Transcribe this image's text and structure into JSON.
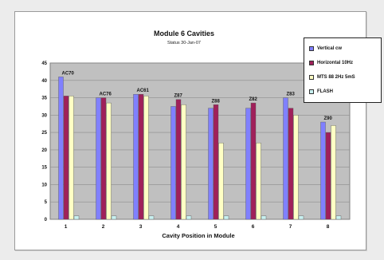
{
  "chart_data": {
    "type": "bar",
    "title": "Module 6 Cavities",
    "subtitle": "Status 30-Jan-07",
    "xlabel": "Cavity Position in Module",
    "ylabel": "",
    "ylim": [
      0,
      45
    ],
    "yticks": [
      0,
      5,
      10,
      15,
      20,
      25,
      30,
      35,
      40,
      45
    ],
    "categories": [
      "1",
      "2",
      "3",
      "4",
      "5",
      "6",
      "7",
      "8"
    ],
    "cavity_labels": [
      "AC70",
      "AC76",
      "AC61",
      "Z87",
      "Z88",
      "Z82",
      "Z83",
      "Z90"
    ],
    "grid": true,
    "legend": "top-right",
    "series": [
      {
        "name": "Vertical cw",
        "color": "#8080ff",
        "values": [
          41,
          35,
          36,
          32.5,
          32,
          32,
          35,
          28
        ]
      },
      {
        "name": "Horizontal 10Hz",
        "color": "#a0205a",
        "values": [
          35.5,
          35,
          36,
          34.5,
          33,
          33.5,
          32,
          25
        ]
      },
      {
        "name": "MTS 88 2Hz 5mS",
        "color": "#ffffc4",
        "values": [
          35.5,
          33.5,
          35.5,
          33,
          22,
          22,
          30,
          27
        ]
      },
      {
        "name": "FLASH",
        "color": "#c8f0f0",
        "values": [
          1,
          1,
          1,
          1,
          1,
          1,
          1,
          1
        ]
      }
    ]
  }
}
